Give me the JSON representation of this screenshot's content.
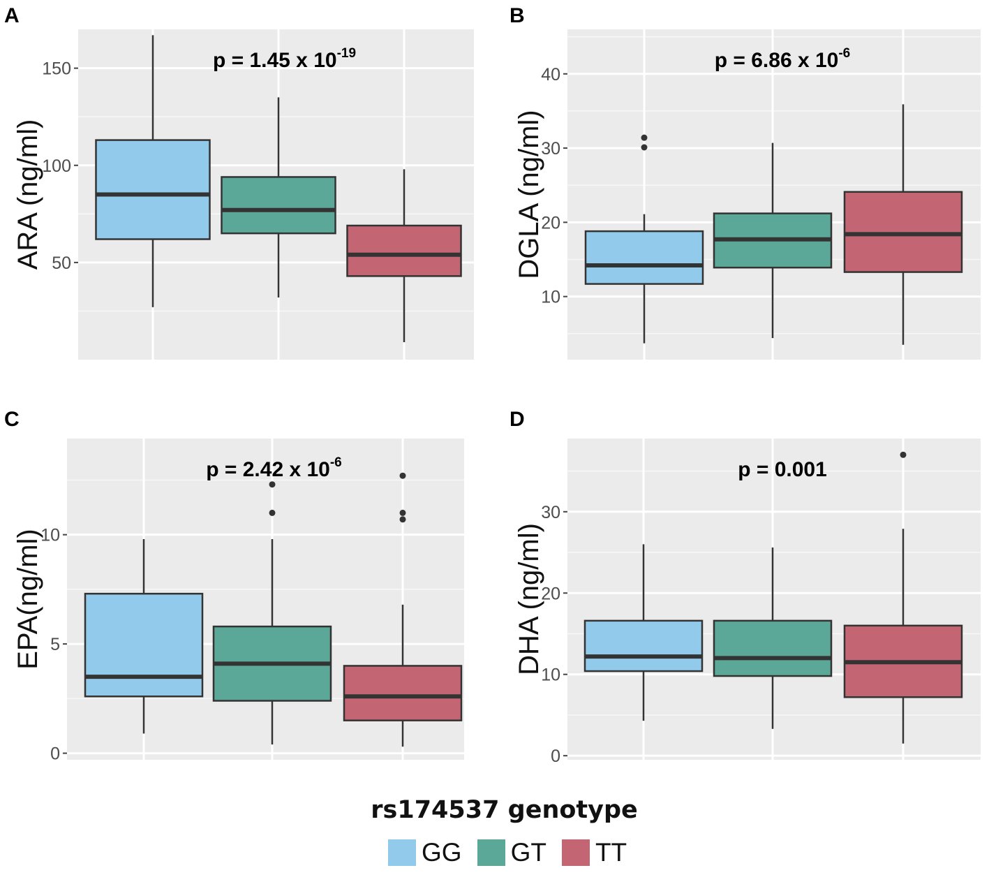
{
  "figure": {
    "legend_title": "rs174537 genotype",
    "groups": [
      {
        "name": "GG",
        "color": "#92CAEC"
      },
      {
        "name": "GT",
        "color": "#5BA898"
      },
      {
        "name": "TT",
        "color": "#C46573"
      }
    ]
  },
  "chart_data": [
    {
      "type": "boxplot",
      "panel_label": "A",
      "ylabel": "ARA (ng/ml)",
      "annotation": {
        "prefix": "p = 1.45 x 10",
        "exponent": "-19"
      },
      "ylim": [
        0,
        170
      ],
      "yticks": [
        50,
        100,
        150
      ],
      "categories": [
        "GG",
        "GT",
        "TT"
      ],
      "boxes": [
        {
          "min": 27,
          "q1": 62,
          "median": 85,
          "q3": 113,
          "max": 167,
          "outliers": []
        },
        {
          "min": 32,
          "q1": 65,
          "median": 77,
          "q3": 94,
          "max": 135,
          "outliers": []
        },
        {
          "min": 9,
          "q1": 43,
          "median": 54,
          "q3": 69,
          "max": 98,
          "outliers": []
        }
      ]
    },
    {
      "type": "boxplot",
      "panel_label": "B",
      "ylabel": "DGLA (ng/ml)",
      "annotation": {
        "prefix": "p = 6.86 x 10",
        "exponent": "-6"
      },
      "ylim": [
        1.5,
        46
      ],
      "yticks": [
        10,
        20,
        30,
        40
      ],
      "categories": [
        "GG",
        "GT",
        "TT"
      ],
      "boxes": [
        {
          "min": 3.7,
          "q1": 11.7,
          "median": 14.2,
          "q3": 18.8,
          "max": 21.1,
          "outliers": [
            30.1,
            31.4
          ]
        },
        {
          "min": 4.4,
          "q1": 13.9,
          "median": 17.7,
          "q3": 21.2,
          "max": 30.7,
          "outliers": []
        },
        {
          "min": 3.5,
          "q1": 13.3,
          "median": 18.4,
          "q3": 24.1,
          "max": 35.9,
          "outliers": []
        }
      ]
    },
    {
      "type": "boxplot",
      "panel_label": "C",
      "ylabel": "EPA(ng/ml)",
      "annotation": {
        "prefix": "p = 2.42 x 10",
        "exponent": "-6"
      },
      "ylim": [
        -0.3,
        14.4
      ],
      "yticks": [
        0,
        5,
        10
      ],
      "categories": [
        "GG",
        "GT",
        "TT"
      ],
      "boxes": [
        {
          "min": 0.9,
          "q1": 2.6,
          "median": 3.5,
          "q3": 7.3,
          "max": 9.8,
          "outliers": []
        },
        {
          "min": 0.4,
          "q1": 2.4,
          "median": 4.1,
          "q3": 5.8,
          "max": 9.8,
          "outliers": [
            11.0,
            12.3
          ]
        },
        {
          "min": 0.3,
          "q1": 1.5,
          "median": 2.6,
          "q3": 4.0,
          "max": 6.8,
          "outliers": [
            10.7,
            11.0,
            12.7
          ]
        }
      ]
    },
    {
      "type": "boxplot",
      "panel_label": "D",
      "ylabel": "DHA (ng/ml)",
      "annotation": {
        "prefix": "p = 0.001",
        "exponent": ""
      },
      "ylim": [
        -0.5,
        39
      ],
      "yticks": [
        0,
        10,
        20,
        30
      ],
      "categories": [
        "GG",
        "GT",
        "TT"
      ],
      "boxes": [
        {
          "min": 4.3,
          "q1": 10.4,
          "median": 12.2,
          "q3": 16.6,
          "max": 26.0,
          "outliers": []
        },
        {
          "min": 3.3,
          "q1": 9.8,
          "median": 12.0,
          "q3": 16.6,
          "max": 25.6,
          "outliers": []
        },
        {
          "min": 1.5,
          "q1": 7.2,
          "median": 11.5,
          "q3": 16.0,
          "max": 27.9,
          "outliers": [
            37.0
          ]
        }
      ]
    }
  ]
}
